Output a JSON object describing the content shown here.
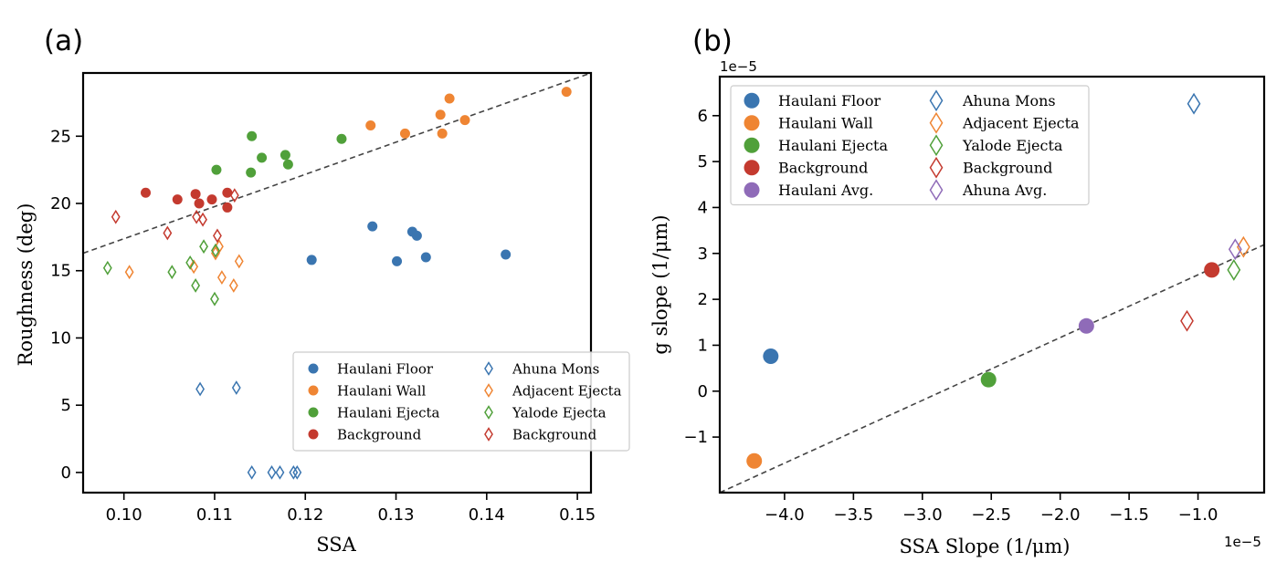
{
  "colors": {
    "blue": "#3a75b0",
    "orange": "#ef8533",
    "green": "#50a03a",
    "red": "#c43a2f",
    "purple": "#8f6bb8"
  },
  "chart_data": [
    {
      "panel_label": "(a)",
      "type": "scatter",
      "xlabel": "SSA",
      "ylabel": "Roughness (deg)",
      "xlim": [
        0.0955,
        0.1515
      ],
      "ylim": [
        -1.5,
        29.7
      ],
      "xticks": [
        0.1,
        0.11,
        0.12,
        0.13,
        0.14,
        0.15
      ],
      "xtick_labels": [
        "0.10",
        "0.11",
        "0.12",
        "0.13",
        "0.14",
        "0.15"
      ],
      "yticks": [
        0,
        5,
        10,
        15,
        20,
        25
      ],
      "ytick_labels": [
        "0",
        "5",
        "10",
        "15",
        "20",
        "25"
      ],
      "fit_line": {
        "x": [
          0.0955,
          0.1515
        ],
        "y": [
          16.3,
          29.7
        ],
        "style": "dashed"
      },
      "legend_position": "lower-right",
      "series": [
        {
          "name": "Haulani Floor",
          "marker": "circle",
          "color": "blue",
          "points": [
            [
              0.1207,
              15.8
            ],
            [
              0.1274,
              18.3
            ],
            [
              0.1301,
              15.7
            ],
            [
              0.1318,
              17.9
            ],
            [
              0.1323,
              17.6
            ],
            [
              0.1333,
              16.0
            ],
            [
              0.1421,
              16.2
            ]
          ]
        },
        {
          "name": "Haulani Wall",
          "marker": "circle",
          "color": "orange",
          "points": [
            [
              0.1272,
              25.8
            ],
            [
              0.131,
              25.2
            ],
            [
              0.1349,
              26.6
            ],
            [
              0.1351,
              25.2
            ],
            [
              0.1359,
              27.8
            ],
            [
              0.1376,
              26.2
            ],
            [
              0.1488,
              28.3
            ]
          ]
        },
        {
          "name": "Haulani Ejecta",
          "marker": "circle",
          "color": "green",
          "points": [
            [
              0.1102,
              22.5
            ],
            [
              0.1141,
              25.0
            ],
            [
              0.114,
              22.3
            ],
            [
              0.1152,
              23.4
            ],
            [
              0.1178,
              23.6
            ],
            [
              0.1181,
              22.9
            ],
            [
              0.124,
              24.8
            ]
          ]
        },
        {
          "name": "Background",
          "marker": "circle",
          "color": "red",
          "points": [
            [
              0.1024,
              20.8
            ],
            [
              0.1059,
              20.3
            ],
            [
              0.1079,
              20.7
            ],
            [
              0.1083,
              20.0
            ],
            [
              0.1097,
              20.3
            ],
            [
              0.1114,
              20.8
            ],
            [
              0.1114,
              19.7
            ]
          ]
        },
        {
          "name": "Ahuna Mons",
          "marker": "diamond",
          "color": "blue",
          "points": [
            [
              0.1084,
              6.2
            ],
            [
              0.1124,
              6.3
            ],
            [
              0.1141,
              0.0
            ],
            [
              0.1163,
              0.0
            ],
            [
              0.1172,
              0.0
            ],
            [
              0.1187,
              0.0
            ],
            [
              0.1191,
              0.0
            ]
          ]
        },
        {
          "name": "Adjacent Ejecta",
          "marker": "diamond",
          "color": "orange",
          "points": [
            [
              0.1006,
              14.9
            ],
            [
              0.1077,
              15.3
            ],
            [
              0.1101,
              16.3
            ],
            [
              0.1105,
              16.8
            ],
            [
              0.1108,
              14.5
            ],
            [
              0.1121,
              13.9
            ],
            [
              0.1127,
              15.7
            ]
          ]
        },
        {
          "name": "Yalode Ejecta",
          "marker": "diamond",
          "color": "green",
          "points": [
            [
              0.0982,
              15.2
            ],
            [
              0.1053,
              14.9
            ],
            [
              0.1073,
              15.6
            ],
            [
              0.1079,
              13.9
            ],
            [
              0.1088,
              16.8
            ],
            [
              0.11,
              12.9
            ],
            [
              0.1101,
              16.5
            ]
          ]
        },
        {
          "name": "Background",
          "marker": "diamond",
          "color": "red",
          "points": [
            [
              0.0991,
              19.0
            ],
            [
              0.1048,
              17.8
            ],
            [
              0.108,
              19.0
            ],
            [
              0.1087,
              18.8
            ],
            [
              0.1103,
              17.6
            ],
            [
              0.1122,
              20.6
            ]
          ]
        }
      ],
      "legend": {
        "col1": [
          "Haulani Floor",
          "Haulani Wall",
          "Haulani Ejecta",
          "Background"
        ],
        "col2": [
          "Ahuna Mons",
          "Adjacent Ejecta",
          "Yalode Ejecta",
          "Background"
        ]
      }
    },
    {
      "panel_label": "(b)",
      "type": "scatter",
      "xlabel": "SSA Slope (1/μm)",
      "ylabel": "g slope (1/μm)",
      "x_offset_label": "1e−5",
      "y_offset_label": "1e−5",
      "xlim": [
        -4.47,
        -0.52
      ],
      "ylim": [
        -2.21,
        6.85
      ],
      "xticks": [
        -4.0,
        -3.5,
        -3.0,
        -2.5,
        -2.0,
        -1.5,
        -1.0
      ],
      "xtick_labels": [
        "−4.0",
        "−3.5",
        "−3.0",
        "−2.5",
        "−2.0",
        "−1.5",
        "−1.0"
      ],
      "yticks": [
        -1,
        0,
        1,
        2,
        3,
        4,
        5,
        6
      ],
      "ytick_labels": [
        "−1",
        "0",
        "1",
        "2",
        "3",
        "4",
        "5",
        "6"
      ],
      "fit_line": {
        "x": [
          -4.47,
          -0.52
        ],
        "y": [
          -2.21,
          3.19
        ],
        "style": "dashed"
      },
      "legend_position": "upper-left",
      "series": [
        {
          "name": "Haulani Floor",
          "marker": "circle",
          "color": "blue",
          "points": [
            [
              -4.1,
              0.76
            ]
          ]
        },
        {
          "name": "Haulani Wall",
          "marker": "circle",
          "color": "orange",
          "points": [
            [
              -4.22,
              -1.52
            ]
          ]
        },
        {
          "name": "Haulani Ejecta",
          "marker": "circle",
          "color": "green",
          "points": [
            [
              -2.52,
              0.25
            ]
          ]
        },
        {
          "name": "Background",
          "marker": "circle",
          "color": "red",
          "points": [
            [
              -0.9,
              2.64
            ]
          ]
        },
        {
          "name": "Haulani Avg.",
          "marker": "circle",
          "color": "purple",
          "points": [
            [
              -1.81,
              1.42
            ]
          ]
        },
        {
          "name": "Ahuna Mons",
          "marker": "diamond",
          "color": "blue",
          "points": [
            [
              -1.03,
              6.26
            ]
          ]
        },
        {
          "name": "Adjacent Ejecta",
          "marker": "diamond",
          "color": "orange",
          "points": [
            [
              -0.67,
              3.14
            ]
          ]
        },
        {
          "name": "Yalode Ejecta",
          "marker": "diamond",
          "color": "green",
          "points": [
            [
              -0.74,
              2.64
            ]
          ]
        },
        {
          "name": "Background",
          "marker": "diamond",
          "color": "red",
          "points": [
            [
              -1.08,
              1.53
            ]
          ]
        },
        {
          "name": "Ahuna Avg.",
          "marker": "diamond",
          "color": "purple",
          "points": [
            [
              -0.73,
              3.09
            ]
          ]
        }
      ],
      "legend": {
        "col1": [
          "Haulani Floor",
          "Haulani Wall",
          "Haulani Ejecta",
          "Background",
          "Haulani Avg."
        ],
        "col2": [
          "Ahuna Mons",
          "Adjacent Ejecta",
          "Yalode Ejecta",
          "Background",
          "Ahuna Avg."
        ]
      }
    }
  ]
}
